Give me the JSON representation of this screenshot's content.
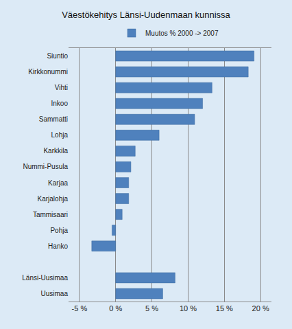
{
  "chart_data": {
    "type": "bar",
    "orientation": "horizontal",
    "title": "Väestökehitys Länsi-Uudenmaan kunnissa",
    "categories": [
      "Siuntio",
      "Kirkkonummi",
      "Vihti",
      "Inkoo",
      "Sammatti",
      "Lohja",
      "Karkkila",
      "Nummi-Pusula",
      "Karjaa",
      "Karjalohja",
      "Tammisaari",
      "Pohja",
      "Hanko",
      null,
      "Länsi-Uusimaa",
      "Uusimaa"
    ],
    "series": [
      {
        "name": "Muutos % 2000 -> 2007",
        "color": "#4f81bd",
        "values": [
          19.1,
          18.3,
          13.3,
          12.0,
          10.9,
          6.0,
          2.7,
          2.1,
          1.8,
          1.8,
          0.9,
          -0.5,
          -3.3,
          null,
          8.2,
          6.5
        ]
      }
    ],
    "xlim": [
      -6.5,
      21.5
    ],
    "xticks": [
      {
        "value": -5,
        "label": "-5 %"
      },
      {
        "value": 0,
        "label": "0 %"
      },
      {
        "value": 5,
        "label": "5 %"
      },
      {
        "value": 10,
        "label": "10 %"
      },
      {
        "value": 15,
        "label": "15 %"
      },
      {
        "value": 20,
        "label": "20 %"
      }
    ],
    "grid": true,
    "legend": "top"
  }
}
